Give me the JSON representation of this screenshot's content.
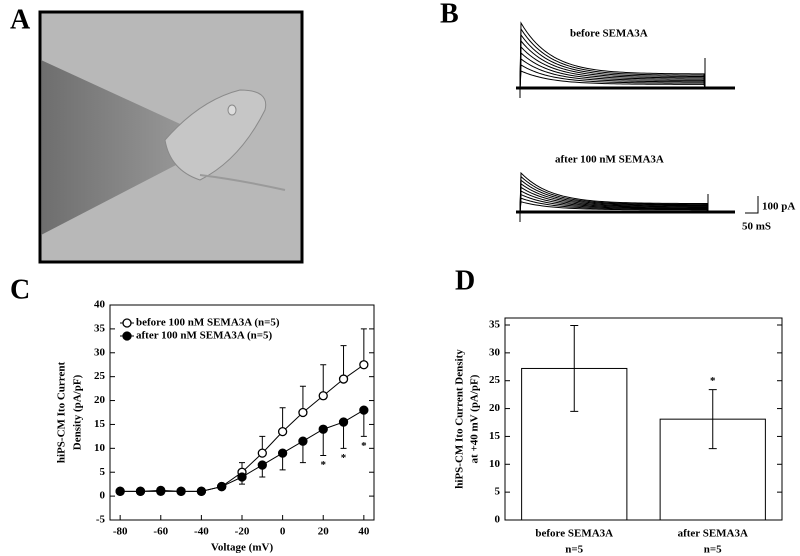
{
  "panels": {
    "a": "A",
    "b": "B",
    "c": "C",
    "d": "D"
  },
  "traces": {
    "before_label": "before SEMA3A",
    "after_label": "after 100 nM SEMA3A",
    "scale_current": "100 pA",
    "scale_time": "50 mS"
  },
  "chart_data": [
    {
      "type": "line",
      "x_label": "Voltage (mV)",
      "y_label": [
        "hiPS-CM Ito Current",
        "Density (pA/pF)"
      ],
      "x": [
        -80,
        -70,
        -60,
        -50,
        -40,
        -30,
        -20,
        -10,
        0,
        10,
        20,
        30,
        40
      ],
      "series": [
        {
          "name": "before 100 nM SEMA3A (n=5)",
          "color": "#ffffff",
          "values": [
            1,
            1,
            1.2,
            1,
            1,
            2,
            5,
            9,
            13.5,
            17.5,
            21,
            24.5,
            27.5
          ],
          "errors": [
            0.3,
            0.3,
            0.3,
            0.3,
            0.3,
            0.5,
            2,
            3.5,
            5,
            5.5,
            6.5,
            7,
            7.5
          ]
        },
        {
          "name": "after 100 nM SEMA3A (n=5)",
          "color": "#000000",
          "values": [
            1,
            1,
            1,
            1,
            1,
            2,
            4,
            6.5,
            9,
            11.5,
            14,
            15.5,
            18
          ],
          "errors": [
            0.3,
            0.3,
            0.3,
            0.3,
            0.3,
            0.5,
            1.5,
            2.5,
            3.5,
            4.5,
            5.5,
            5.5,
            5.5
          ]
        }
      ],
      "annotations": [
        {
          "x": 20,
          "text": "*"
        },
        {
          "x": 30,
          "text": "*"
        },
        {
          "x": 40,
          "text": "*"
        }
      ],
      "xlim": [
        -85,
        45
      ],
      "xticks": [
        -80,
        -60,
        -40,
        -20,
        0,
        20,
        40
      ],
      "ylim": [
        -5,
        40
      ],
      "yticks": [
        -5,
        0,
        5,
        10,
        15,
        20,
        25,
        30,
        35,
        40
      ],
      "legend": "upper left"
    },
    {
      "type": "bar",
      "y_label": [
        "hiPS-CM Ito Current Density",
        "at +40 mV (pA/pF)"
      ],
      "categories": [
        "before SEMA3A",
        "after SEMA3A"
      ],
      "category_notes": [
        "n=5",
        "n=5"
      ],
      "values": [
        27.2,
        18.1
      ],
      "errors": [
        7.7,
        5.3
      ],
      "color": "#ffffff",
      "significance": [
        null,
        "*"
      ],
      "ylim": [
        0,
        35
      ],
      "yticks": [
        0,
        5,
        10,
        15,
        20,
        25,
        30,
        35
      ]
    }
  ]
}
